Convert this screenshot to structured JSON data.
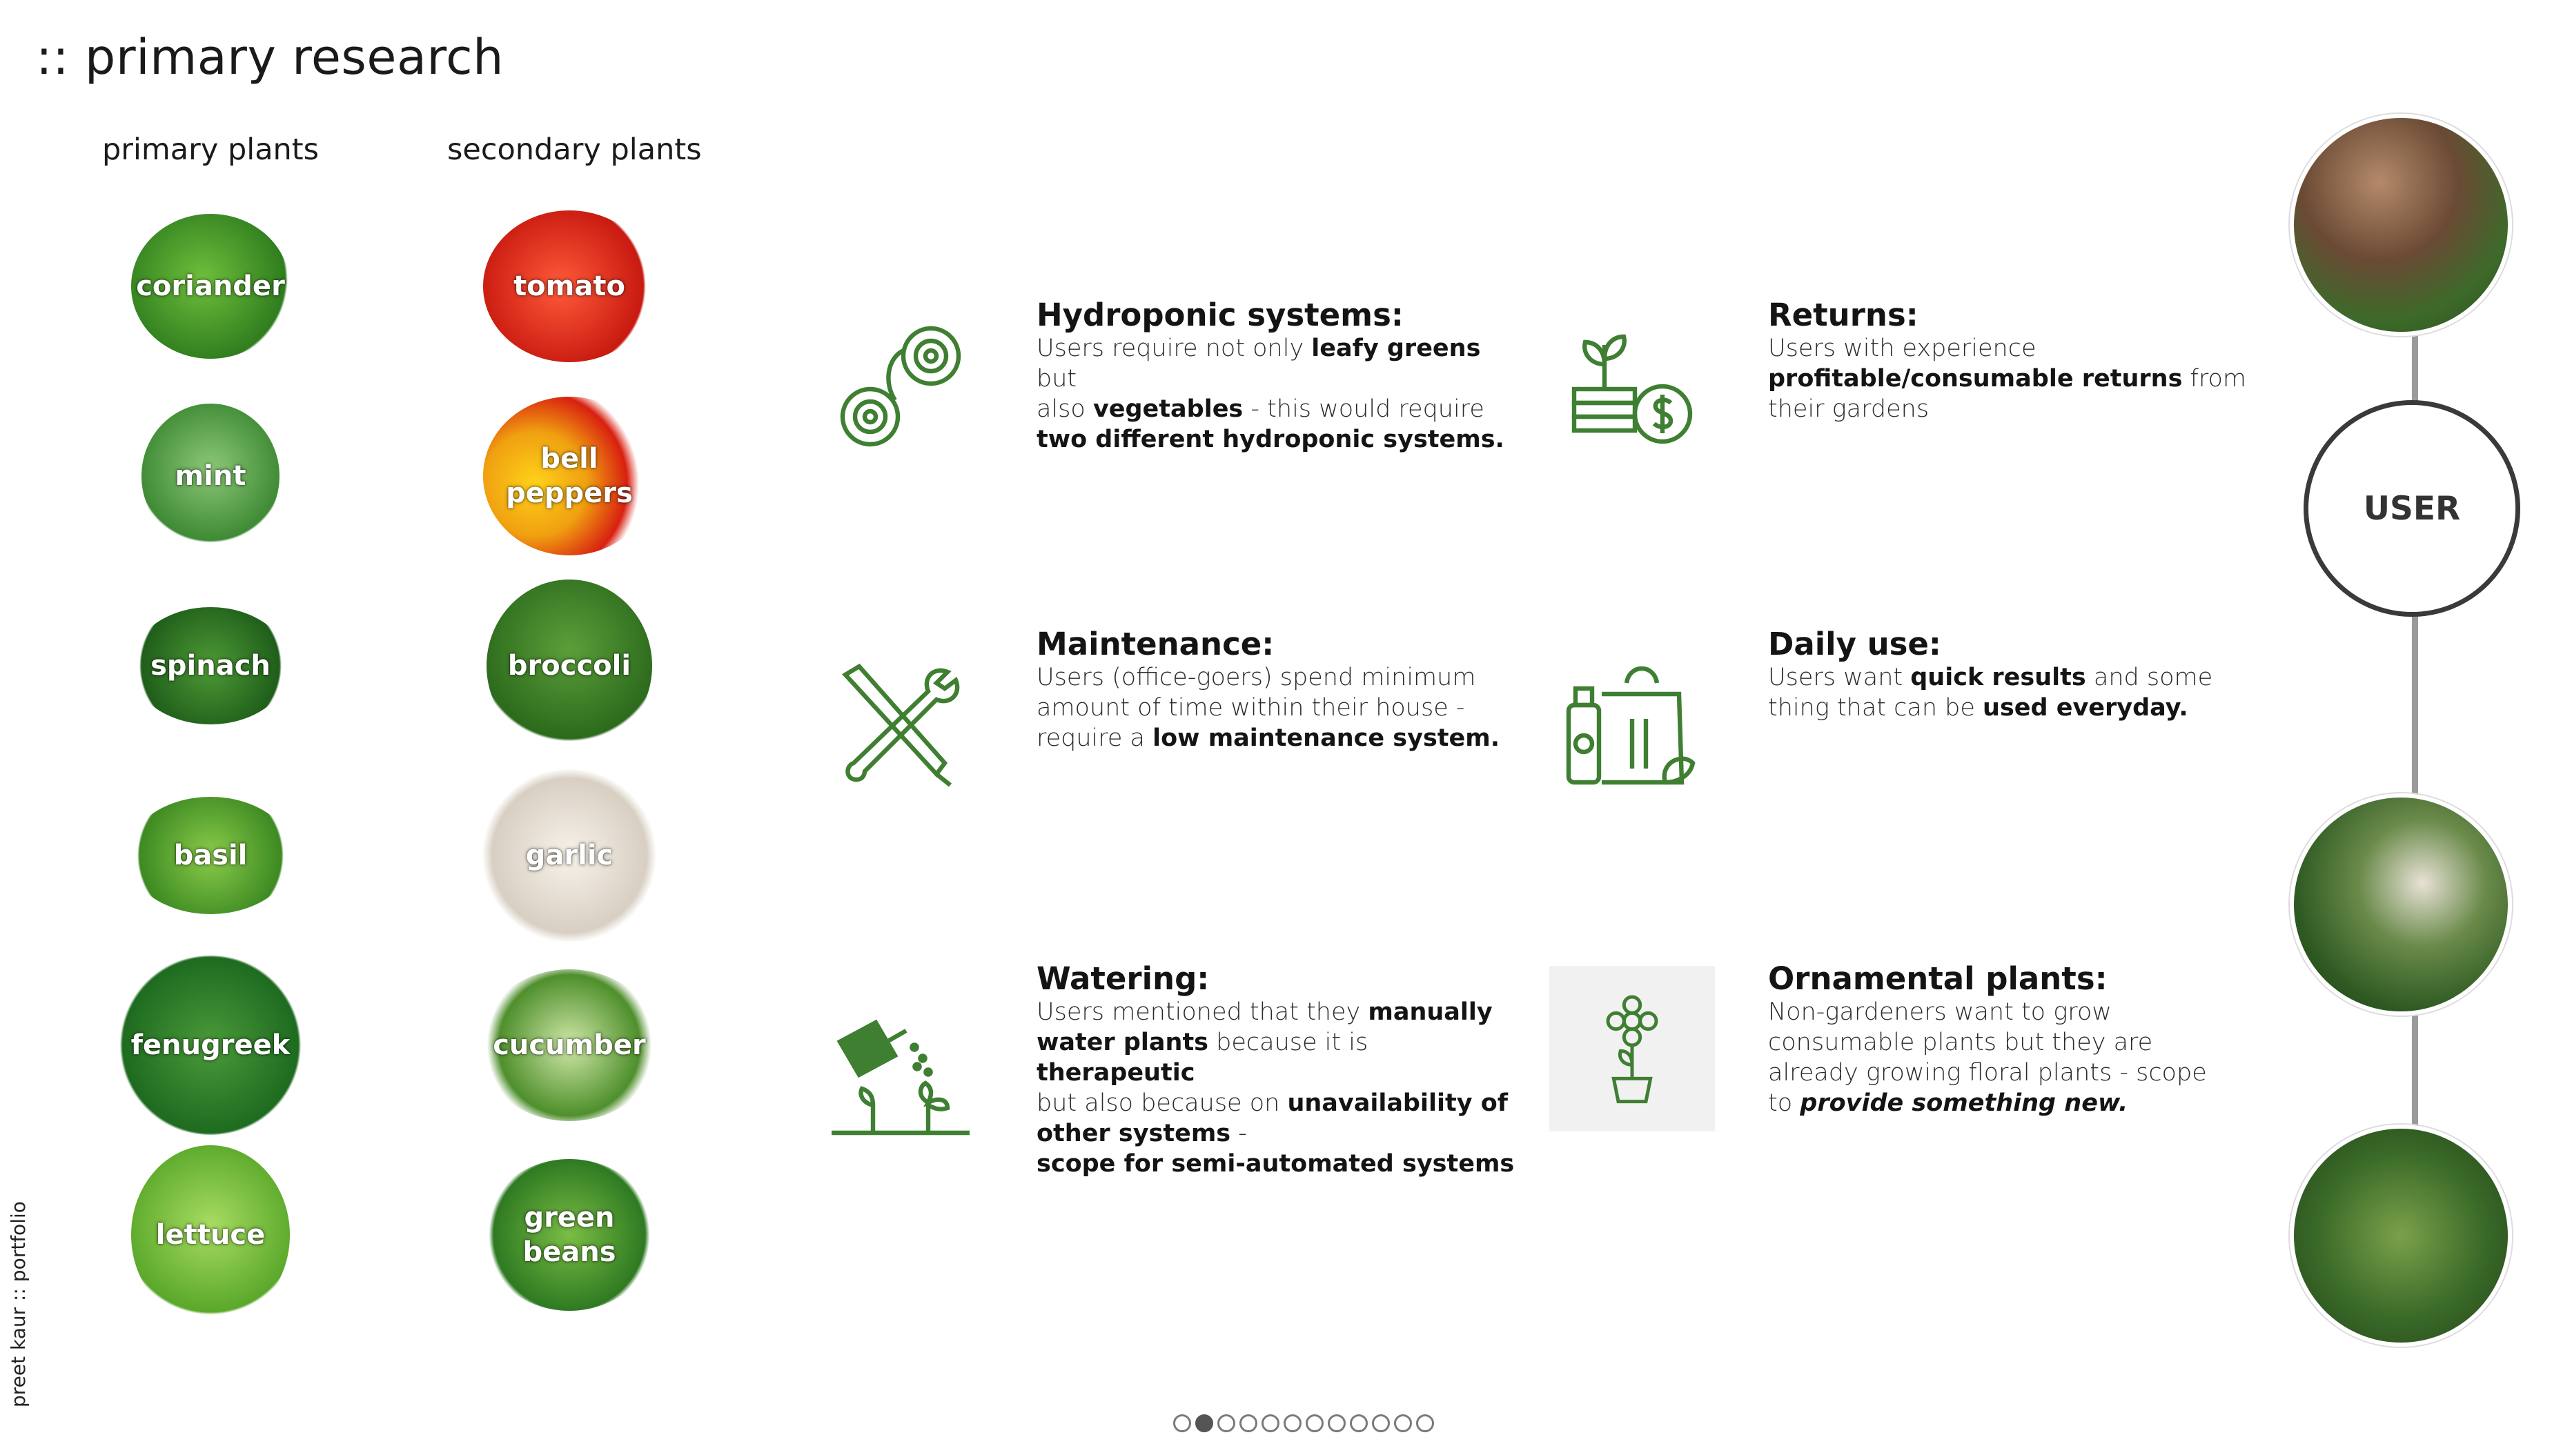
{
  "header": {
    "title": ":: primary research"
  },
  "columns": {
    "primary_heading": "primary plants",
    "secondary_heading": "secondary plants"
  },
  "primary_plants": [
    "coriander",
    "mint",
    "spinach",
    "basil",
    "fenugreek",
    "lettuce"
  ],
  "secondary_plants": [
    "tomato",
    "bell\npeppers",
    "broccoli",
    "garlic",
    "cucumber",
    "green\nbeans"
  ],
  "findings": {
    "hydroponic": {
      "title": "Hydroponic systems:",
      "p1": "Users require not only ",
      "b1": "leafy greens",
      "p2": " but",
      "p3": "also ",
      "b2": "vegetables",
      "p4": " - this would require",
      "b3": "two different hydroponic systems."
    },
    "returns": {
      "title": "Returns:",
      "p1": "Users with experience",
      "b1": "profitable/consumable returns",
      "p2": " from",
      "p3": "their gardens"
    },
    "maintenance": {
      "title": "Maintenance:",
      "p1": "Users (office-goers) spend minimum",
      "p2": "amount of time within their house -",
      "p3": "require a ",
      "b1": "low maintenance system."
    },
    "daily": {
      "title": "Daily use:",
      "p1": "Users want ",
      "b1": "quick results",
      "p2": " and some",
      "p3": "thing that can be ",
      "b2": "used everyday."
    },
    "watering": {
      "title": "Watering:",
      "p1": "Users mentioned that they ",
      "b1": "manually",
      "b2": "water plants",
      "p2": " because it is ",
      "b3": "therapeutic",
      "p3": "but also because on ",
      "b4": "unavailability of",
      "b5": "other systems",
      "p4": " -",
      "b6": "scope for semi-automated systems"
    },
    "ornamental": {
      "title": "Ornamental plants:",
      "p1": "Non-gardeners want to grow",
      "p2": "consumable plants but they are",
      "p3": "already growing floral plants - scope",
      "p4": "to ",
      "b1": "provide something new."
    }
  },
  "user": {
    "label": "USER"
  },
  "footer": {
    "credit": "preet kaur :: portfolio",
    "pages_total": 12,
    "page_active": 2
  },
  "colors": {
    "icon_green": "#3f7f32",
    "ring": "#3a3a3a",
    "connector": "#9a9a9a"
  },
  "icons": [
    "gears-icon",
    "plant-money-icon",
    "tools-icon",
    "grocery-bag-icon",
    "watering-can-icon",
    "potted-flower-icon"
  ]
}
